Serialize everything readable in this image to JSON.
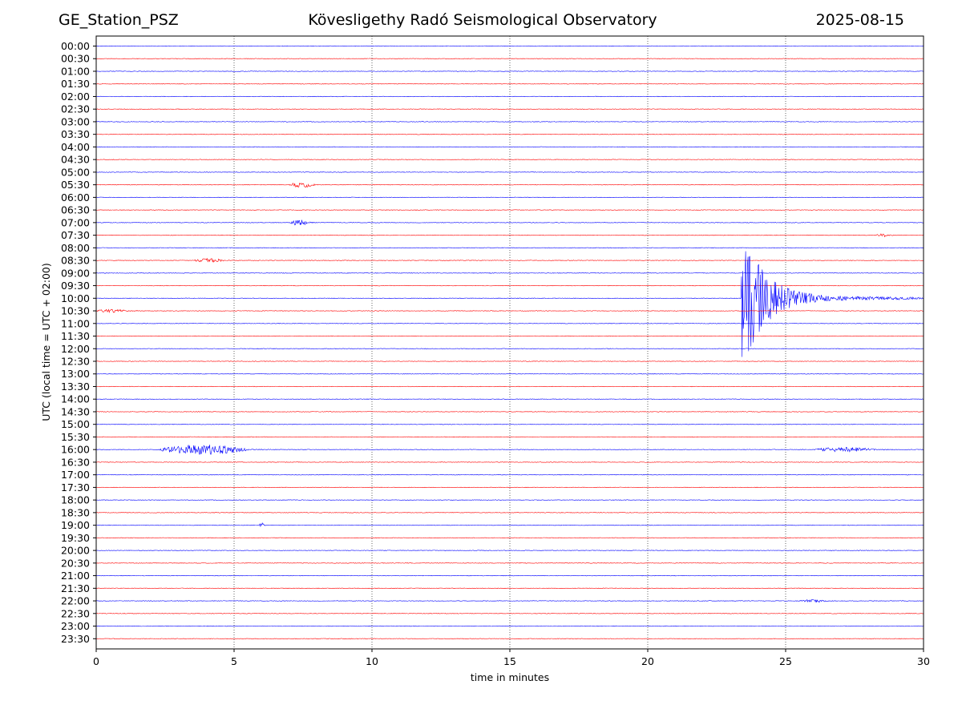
{
  "header": {
    "station": "GE_Station_PSZ",
    "observatory": "Kövesligethy Radó Seismological Observatory",
    "date": "2025-08-15"
  },
  "colors": {
    "even_trace": "#0000ff",
    "odd_trace": "#ff0000",
    "grid": "#000000"
  },
  "chart_data": {
    "type": "line",
    "title": "Kövesligethy Radó Seismological Observatory",
    "xlabel": "time in minutes",
    "ylabel": "UTC (local time = UTC + 02:00)",
    "xlim": [
      0,
      30
    ],
    "x_ticks": [
      "0",
      "5",
      "10",
      "15",
      "20",
      "25",
      "30"
    ],
    "grid": "vertical dotted at 5-minute ticks",
    "rows": [
      "00:00",
      "00:30",
      "01:00",
      "01:30",
      "02:00",
      "02:30",
      "03:00",
      "03:30",
      "04:00",
      "04:30",
      "05:00",
      "05:30",
      "06:00",
      "06:30",
      "07:00",
      "07:30",
      "08:00",
      "08:30",
      "09:00",
      "09:30",
      "10:00",
      "10:30",
      "11:00",
      "11:30",
      "12:00",
      "12:30",
      "13:00",
      "13:30",
      "14:00",
      "14:30",
      "15:00",
      "15:30",
      "16:00",
      "16:30",
      "17:00",
      "17:30",
      "18:00",
      "18:30",
      "19:00",
      "19:30",
      "20:00",
      "20:30",
      "21:00",
      "21:30",
      "22:00",
      "22:30",
      "23:00",
      "23:30"
    ],
    "events": [
      {
        "row": "05:30",
        "start_min": 7.0,
        "end_min": 8.2,
        "amplitude": 3
      },
      {
        "row": "07:00",
        "start_min": 7.0,
        "end_min": 8.0,
        "amplitude": 3.5
      },
      {
        "row": "07:30",
        "start_min": 28.3,
        "end_min": 28.9,
        "amplitude": 1.5
      },
      {
        "row": "08:30",
        "start_min": 3.5,
        "end_min": 5.0,
        "amplitude": 2
      },
      {
        "row": "10:00",
        "start_min": 23.4,
        "end_min": 30.0,
        "amplitude": 95
      },
      {
        "row": "10:30",
        "start_min": 0.0,
        "end_min": 1.5,
        "amplitude": 1.5
      },
      {
        "row": "16:00",
        "start_min": 2.3,
        "end_min": 6.5,
        "amplitude": 6
      },
      {
        "row": "16:00",
        "start_min": 26.0,
        "end_min": 29.0,
        "amplitude": 2.5
      },
      {
        "row": "19:00",
        "start_min": 5.9,
        "end_min": 6.2,
        "amplitude": 2.5
      },
      {
        "row": "22:00",
        "start_min": 25.5,
        "end_min": 26.8,
        "amplitude": 1.5
      }
    ]
  }
}
